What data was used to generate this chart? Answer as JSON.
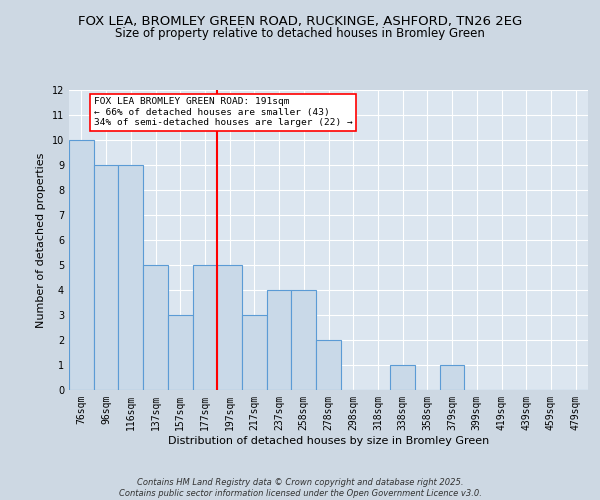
{
  "title_line1": "FOX LEA, BROMLEY GREEN ROAD, RUCKINGE, ASHFORD, TN26 2EG",
  "title_line2": "Size of property relative to detached houses in Bromley Green",
  "xlabel": "Distribution of detached houses by size in Bromley Green",
  "ylabel": "Number of detached properties",
  "footer": "Contains HM Land Registry data © Crown copyright and database right 2025.\nContains public sector information licensed under the Open Government Licence v3.0.",
  "categories": [
    "76sqm",
    "96sqm",
    "116sqm",
    "137sqm",
    "157sqm",
    "177sqm",
    "197sqm",
    "217sqm",
    "237sqm",
    "258sqm",
    "278sqm",
    "298sqm",
    "318sqm",
    "338sqm",
    "358sqm",
    "379sqm",
    "399sqm",
    "419sqm",
    "439sqm",
    "459sqm",
    "479sqm"
  ],
  "values": [
    10,
    9,
    9,
    5,
    3,
    5,
    5,
    3,
    4,
    4,
    2,
    0,
    0,
    1,
    0,
    1,
    0,
    0,
    0,
    0,
    0
  ],
  "bar_color": "#c9d9e8",
  "bar_edgecolor": "#5b9bd5",
  "red_line_index": 6,
  "annotation_text": "FOX LEA BROMLEY GREEN ROAD: 191sqm\n← 66% of detached houses are smaller (43)\n34% of semi-detached houses are larger (22) →",
  "ylim": [
    0,
    12
  ],
  "yticks": [
    0,
    1,
    2,
    3,
    4,
    5,
    6,
    7,
    8,
    9,
    10,
    11,
    12
  ],
  "background_color": "#dce6f0",
  "grid_color": "#ffffff",
  "fig_background": "#cdd8e3",
  "title_fontsize": 9.5,
  "subtitle_fontsize": 8.5,
  "axis_label_fontsize": 8,
  "tick_fontsize": 7,
  "footer_fontsize": 6
}
